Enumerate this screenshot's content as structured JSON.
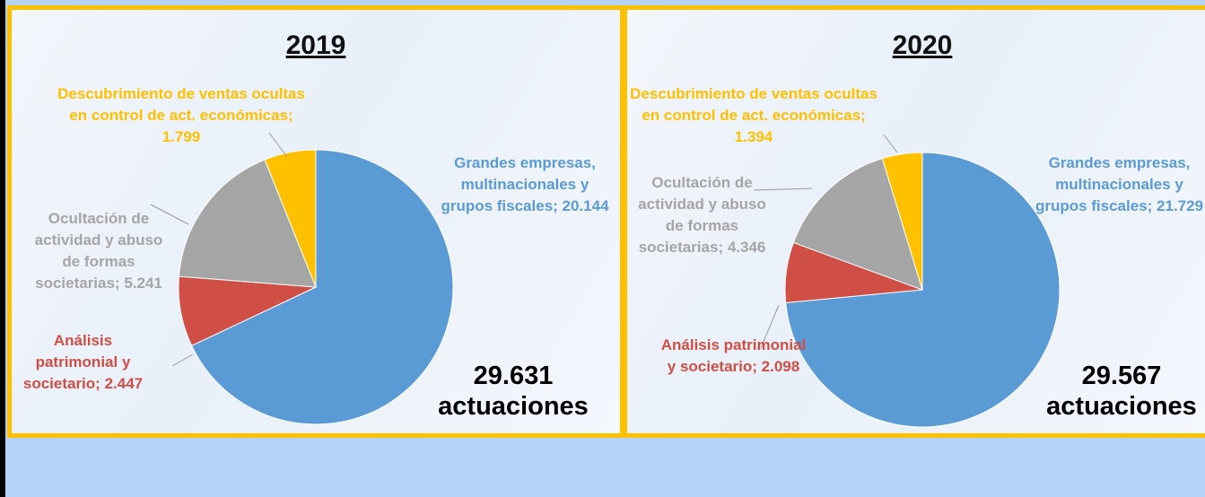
{
  "chart_data": [
    {
      "type": "pie",
      "title": "2019",
      "categories": [
        "Grandes empresas, multinacionales y grupos fiscales;",
        "Análisis patrimonial y societario;",
        "Ocultación de actividad y abuso de formas societarias;",
        "Descubrimiento de ventas ocultas en control de act. económicas;"
      ],
      "values": [
        20144,
        2447,
        5241,
        1799
      ],
      "value_labels": [
        "20.144",
        "2.447",
        "5.241",
        "1.799"
      ],
      "colors": [
        "#5b9bd5",
        "#cf4f46",
        "#a5a5a5",
        "#ffc000"
      ],
      "annotations": [
        "29.631",
        "actuaciones"
      ]
    },
    {
      "type": "pie",
      "title": "2020",
      "categories": [
        "Grandes empresas, multinacionales y grupos fiscales;",
        "Análisis patrimonial y societario;",
        "Ocultación de actividad y abuso de formas societarias;",
        "Descubrimiento de ventas ocultas en control de act. económicas;"
      ],
      "values": [
        21729,
        2098,
        4346,
        1394
      ],
      "value_labels": [
        "21.729",
        "2.098",
        "4.346",
        "1.394"
      ],
      "colors": [
        "#5b9bd5",
        "#cf4f46",
        "#a5a5a5",
        "#ffc000"
      ],
      "annotations": [
        "29.567",
        "actuaciones"
      ]
    }
  ]
}
